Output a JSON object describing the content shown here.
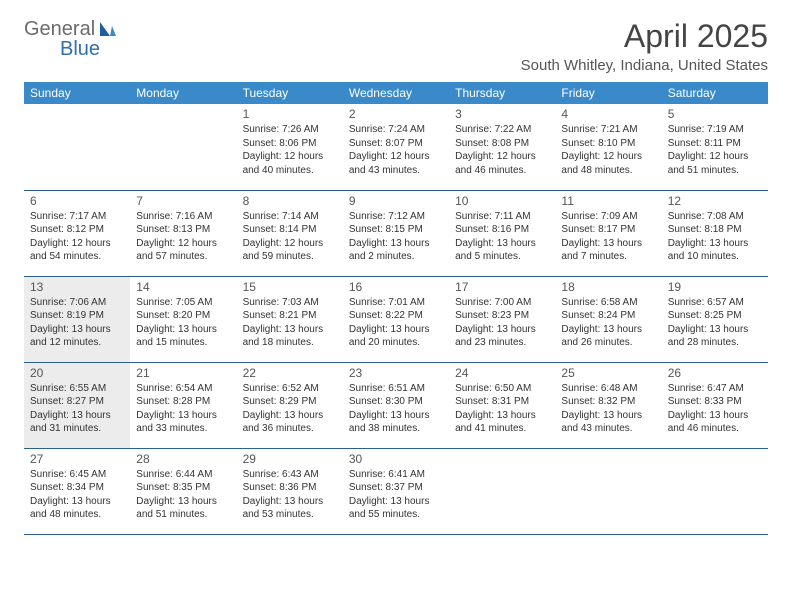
{
  "logo": {
    "part1": "General",
    "part2": "Blue"
  },
  "title": "April 2025",
  "location": "South Whitley, Indiana, United States",
  "colors": {
    "header_bg": "#3a8ac9",
    "header_text": "#ffffff",
    "rule": "#2b5f8f",
    "shaded": "#ececec",
    "logo_gray": "#6b6b6b",
    "logo_blue": "#2f6fb0"
  },
  "day_headers": [
    "Sunday",
    "Monday",
    "Tuesday",
    "Wednesday",
    "Thursday",
    "Friday",
    "Saturday"
  ],
  "weeks": [
    [
      null,
      null,
      {
        "n": "1",
        "sr": "Sunrise: 7:26 AM",
        "ss": "Sunset: 8:06 PM",
        "d1": "Daylight: 12 hours",
        "d2": "and 40 minutes."
      },
      {
        "n": "2",
        "sr": "Sunrise: 7:24 AM",
        "ss": "Sunset: 8:07 PM",
        "d1": "Daylight: 12 hours",
        "d2": "and 43 minutes."
      },
      {
        "n": "3",
        "sr": "Sunrise: 7:22 AM",
        "ss": "Sunset: 8:08 PM",
        "d1": "Daylight: 12 hours",
        "d2": "and 46 minutes."
      },
      {
        "n": "4",
        "sr": "Sunrise: 7:21 AM",
        "ss": "Sunset: 8:10 PM",
        "d1": "Daylight: 12 hours",
        "d2": "and 48 minutes."
      },
      {
        "n": "5",
        "sr": "Sunrise: 7:19 AM",
        "ss": "Sunset: 8:11 PM",
        "d1": "Daylight: 12 hours",
        "d2": "and 51 minutes."
      }
    ],
    [
      {
        "n": "6",
        "sr": "Sunrise: 7:17 AM",
        "ss": "Sunset: 8:12 PM",
        "d1": "Daylight: 12 hours",
        "d2": "and 54 minutes."
      },
      {
        "n": "7",
        "sr": "Sunrise: 7:16 AM",
        "ss": "Sunset: 8:13 PM",
        "d1": "Daylight: 12 hours",
        "d2": "and 57 minutes."
      },
      {
        "n": "8",
        "sr": "Sunrise: 7:14 AM",
        "ss": "Sunset: 8:14 PM",
        "d1": "Daylight: 12 hours",
        "d2": "and 59 minutes."
      },
      {
        "n": "9",
        "sr": "Sunrise: 7:12 AM",
        "ss": "Sunset: 8:15 PM",
        "d1": "Daylight: 13 hours",
        "d2": "and 2 minutes."
      },
      {
        "n": "10",
        "sr": "Sunrise: 7:11 AM",
        "ss": "Sunset: 8:16 PM",
        "d1": "Daylight: 13 hours",
        "d2": "and 5 minutes."
      },
      {
        "n": "11",
        "sr": "Sunrise: 7:09 AM",
        "ss": "Sunset: 8:17 PM",
        "d1": "Daylight: 13 hours",
        "d2": "and 7 minutes."
      },
      {
        "n": "12",
        "sr": "Sunrise: 7:08 AM",
        "ss": "Sunset: 8:18 PM",
        "d1": "Daylight: 13 hours",
        "d2": "and 10 minutes."
      }
    ],
    [
      {
        "n": "13",
        "sr": "Sunrise: 7:06 AM",
        "ss": "Sunset: 8:19 PM",
        "d1": "Daylight: 13 hours",
        "d2": "and 12 minutes.",
        "shaded": true
      },
      {
        "n": "14",
        "sr": "Sunrise: 7:05 AM",
        "ss": "Sunset: 8:20 PM",
        "d1": "Daylight: 13 hours",
        "d2": "and 15 minutes."
      },
      {
        "n": "15",
        "sr": "Sunrise: 7:03 AM",
        "ss": "Sunset: 8:21 PM",
        "d1": "Daylight: 13 hours",
        "d2": "and 18 minutes."
      },
      {
        "n": "16",
        "sr": "Sunrise: 7:01 AM",
        "ss": "Sunset: 8:22 PM",
        "d1": "Daylight: 13 hours",
        "d2": "and 20 minutes."
      },
      {
        "n": "17",
        "sr": "Sunrise: 7:00 AM",
        "ss": "Sunset: 8:23 PM",
        "d1": "Daylight: 13 hours",
        "d2": "and 23 minutes."
      },
      {
        "n": "18",
        "sr": "Sunrise: 6:58 AM",
        "ss": "Sunset: 8:24 PM",
        "d1": "Daylight: 13 hours",
        "d2": "and 26 minutes."
      },
      {
        "n": "19",
        "sr": "Sunrise: 6:57 AM",
        "ss": "Sunset: 8:25 PM",
        "d1": "Daylight: 13 hours",
        "d2": "and 28 minutes."
      }
    ],
    [
      {
        "n": "20",
        "sr": "Sunrise: 6:55 AM",
        "ss": "Sunset: 8:27 PM",
        "d1": "Daylight: 13 hours",
        "d2": "and 31 minutes.",
        "shaded": true
      },
      {
        "n": "21",
        "sr": "Sunrise: 6:54 AM",
        "ss": "Sunset: 8:28 PM",
        "d1": "Daylight: 13 hours",
        "d2": "and 33 minutes."
      },
      {
        "n": "22",
        "sr": "Sunrise: 6:52 AM",
        "ss": "Sunset: 8:29 PM",
        "d1": "Daylight: 13 hours",
        "d2": "and 36 minutes."
      },
      {
        "n": "23",
        "sr": "Sunrise: 6:51 AM",
        "ss": "Sunset: 8:30 PM",
        "d1": "Daylight: 13 hours",
        "d2": "and 38 minutes."
      },
      {
        "n": "24",
        "sr": "Sunrise: 6:50 AM",
        "ss": "Sunset: 8:31 PM",
        "d1": "Daylight: 13 hours",
        "d2": "and 41 minutes."
      },
      {
        "n": "25",
        "sr": "Sunrise: 6:48 AM",
        "ss": "Sunset: 8:32 PM",
        "d1": "Daylight: 13 hours",
        "d2": "and 43 minutes."
      },
      {
        "n": "26",
        "sr": "Sunrise: 6:47 AM",
        "ss": "Sunset: 8:33 PM",
        "d1": "Daylight: 13 hours",
        "d2": "and 46 minutes."
      }
    ],
    [
      {
        "n": "27",
        "sr": "Sunrise: 6:45 AM",
        "ss": "Sunset: 8:34 PM",
        "d1": "Daylight: 13 hours",
        "d2": "and 48 minutes."
      },
      {
        "n": "28",
        "sr": "Sunrise: 6:44 AM",
        "ss": "Sunset: 8:35 PM",
        "d1": "Daylight: 13 hours",
        "d2": "and 51 minutes."
      },
      {
        "n": "29",
        "sr": "Sunrise: 6:43 AM",
        "ss": "Sunset: 8:36 PM",
        "d1": "Daylight: 13 hours",
        "d2": "and 53 minutes."
      },
      {
        "n": "30",
        "sr": "Sunrise: 6:41 AM",
        "ss": "Sunset: 8:37 PM",
        "d1": "Daylight: 13 hours",
        "d2": "and 55 minutes."
      },
      null,
      null,
      null
    ]
  ]
}
